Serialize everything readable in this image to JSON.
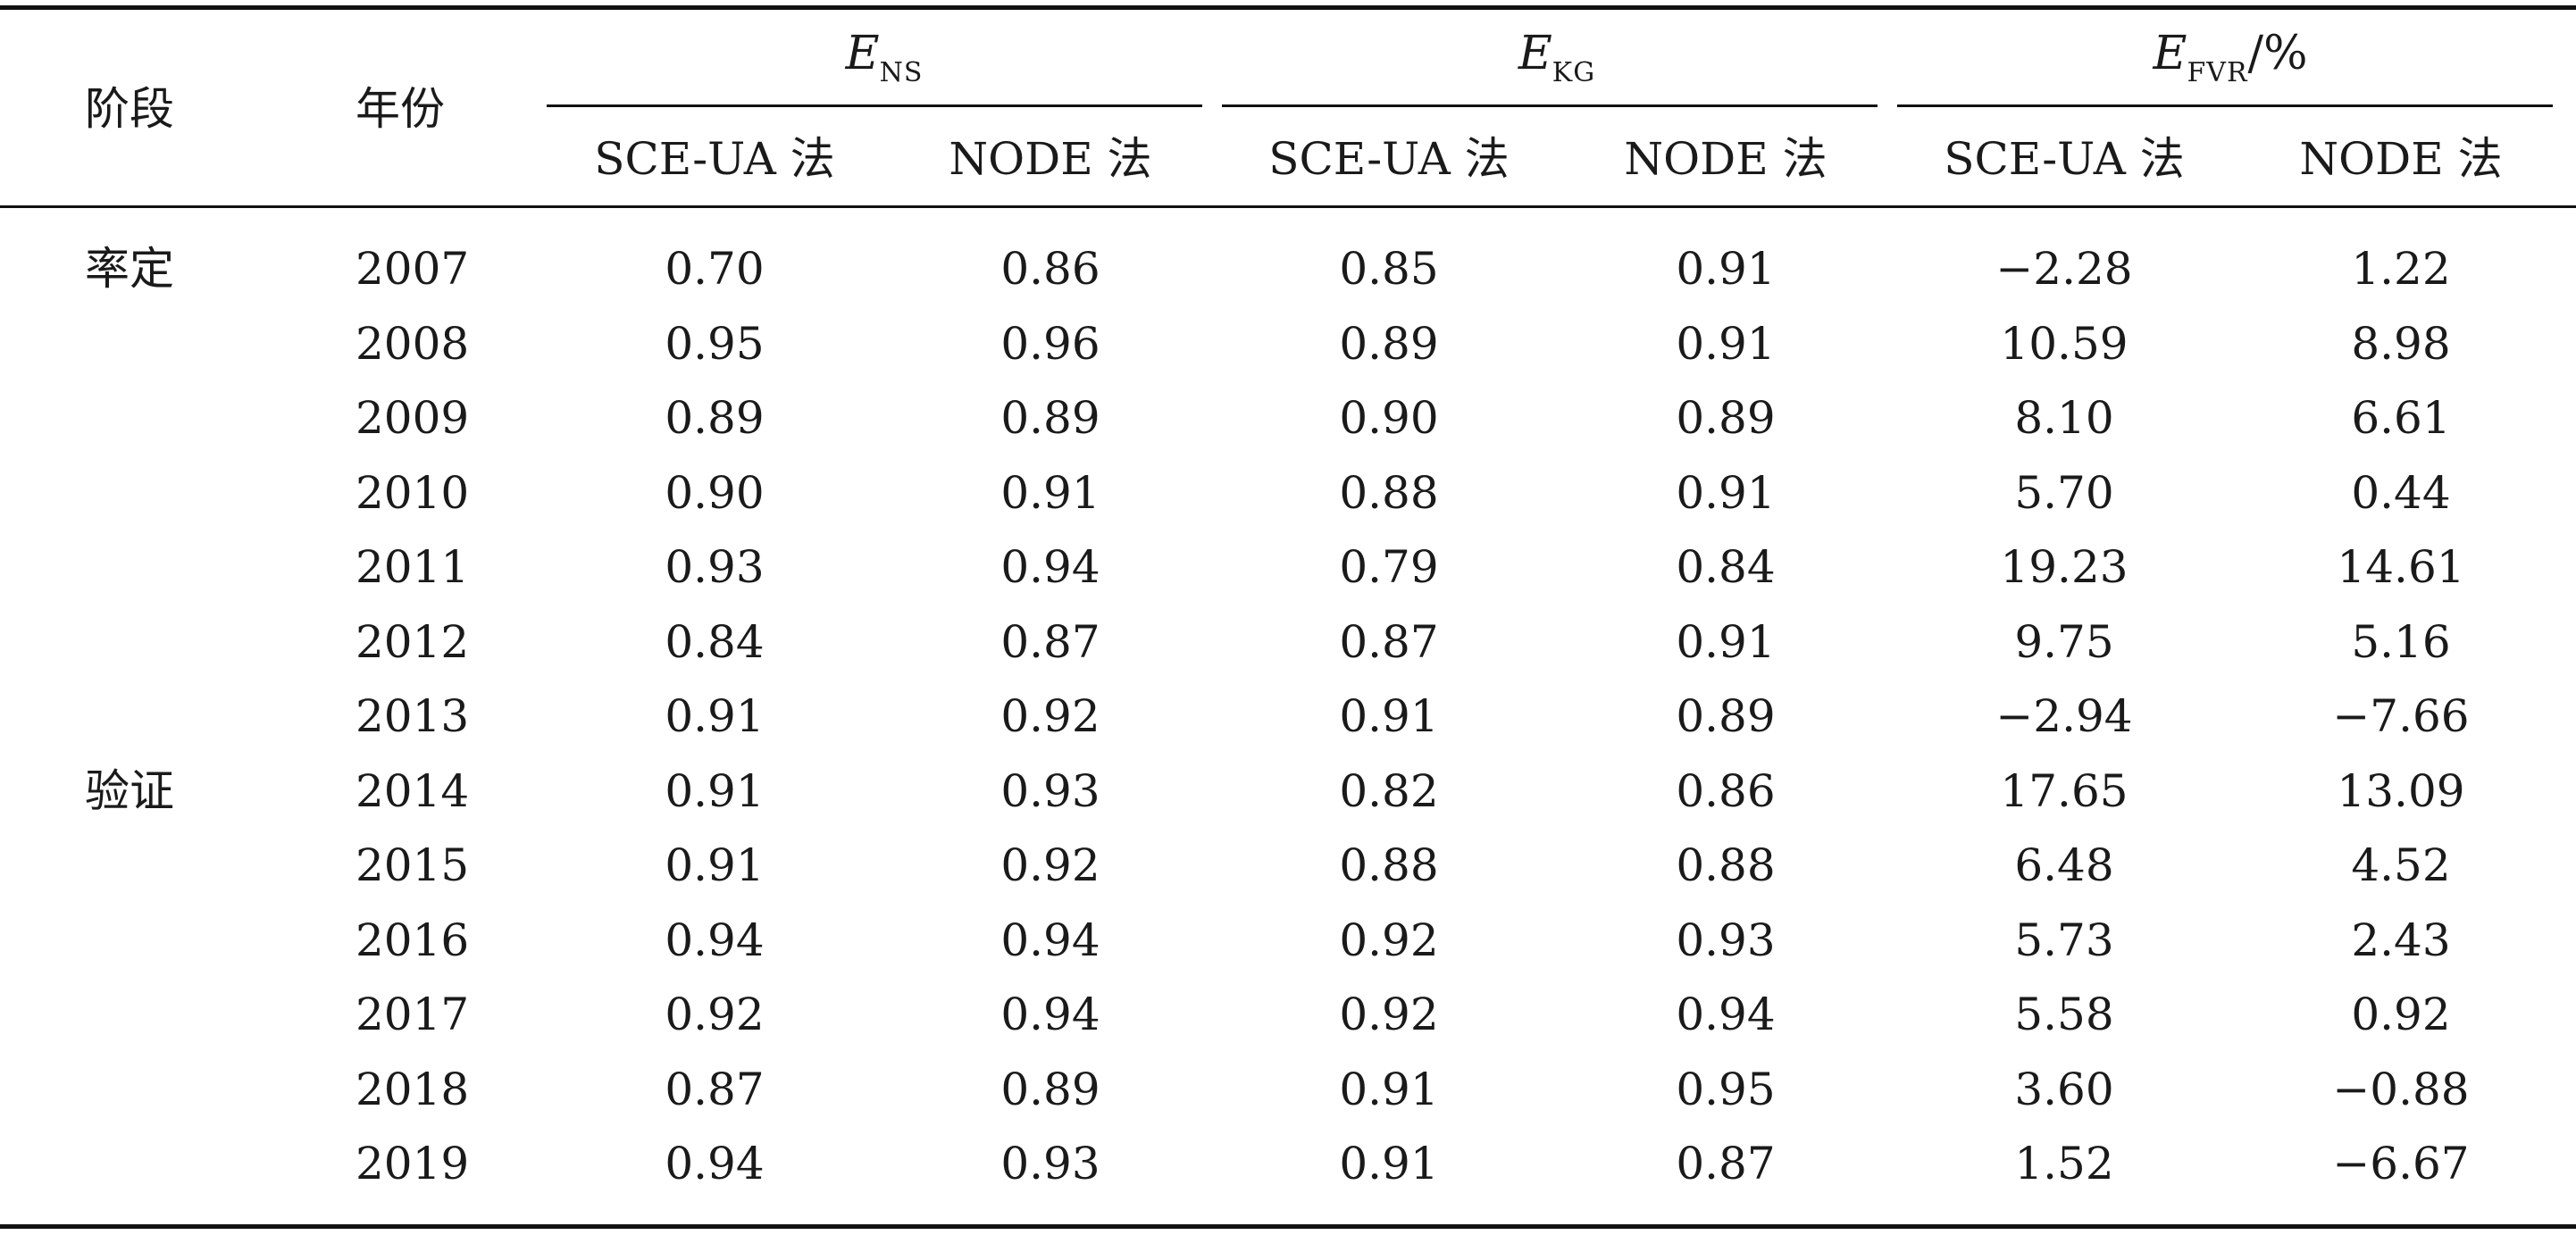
{
  "header": {
    "stage": "阶段",
    "year": "年份",
    "groups": [
      {
        "symbol": "E",
        "subscript": "NS",
        "unit": ""
      },
      {
        "symbol": "E",
        "subscript": "KG",
        "unit": ""
      },
      {
        "symbol": "E",
        "subscript": "FVR",
        "unit": "/%"
      }
    ],
    "methods": [
      "SCE-UA 法",
      "NODE 法",
      "SCE-UA 法",
      "NODE 法",
      "SCE-UA 法",
      "NODE 法"
    ]
  },
  "rows": [
    {
      "stage": "率定",
      "year": "2007",
      "values": [
        "0.70",
        "0.86",
        "0.85",
        "0.91",
        "−2.28",
        "1.22"
      ]
    },
    {
      "stage": "",
      "year": "2008",
      "values": [
        "0.95",
        "0.96",
        "0.89",
        "0.91",
        "10.59",
        "8.98"
      ]
    },
    {
      "stage": "",
      "year": "2009",
      "values": [
        "0.89",
        "0.89",
        "0.90",
        "0.89",
        "8.10",
        "6.61"
      ]
    },
    {
      "stage": "",
      "year": "2010",
      "values": [
        "0.90",
        "0.91",
        "0.88",
        "0.91",
        "5.70",
        "0.44"
      ]
    },
    {
      "stage": "",
      "year": "2011",
      "values": [
        "0.93",
        "0.94",
        "0.79",
        "0.84",
        "19.23",
        "14.61"
      ]
    },
    {
      "stage": "",
      "year": "2012",
      "values": [
        "0.84",
        "0.87",
        "0.87",
        "0.91",
        "9.75",
        "5.16"
      ]
    },
    {
      "stage": "",
      "year": "2013",
      "values": [
        "0.91",
        "0.92",
        "0.91",
        "0.89",
        "−2.94",
        "−7.66"
      ]
    },
    {
      "stage": "验证",
      "year": "2014",
      "values": [
        "0.91",
        "0.93",
        "0.82",
        "0.86",
        "17.65",
        "13.09"
      ]
    },
    {
      "stage": "",
      "year": "2015",
      "values": [
        "0.91",
        "0.92",
        "0.88",
        "0.88",
        "6.48",
        "4.52"
      ]
    },
    {
      "stage": "",
      "year": "2016",
      "values": [
        "0.94",
        "0.94",
        "0.92",
        "0.93",
        "5.73",
        "2.43"
      ]
    },
    {
      "stage": "",
      "year": "2017",
      "values": [
        "0.92",
        "0.94",
        "0.92",
        "0.94",
        "5.58",
        "0.92"
      ]
    },
    {
      "stage": "",
      "year": "2018",
      "values": [
        "0.87",
        "0.89",
        "0.91",
        "0.95",
        "3.60",
        "−0.88"
      ]
    },
    {
      "stage": "",
      "year": "2019",
      "values": [
        "0.94",
        "0.93",
        "0.91",
        "0.87",
        "1.52",
        "−6.67"
      ]
    }
  ]
}
